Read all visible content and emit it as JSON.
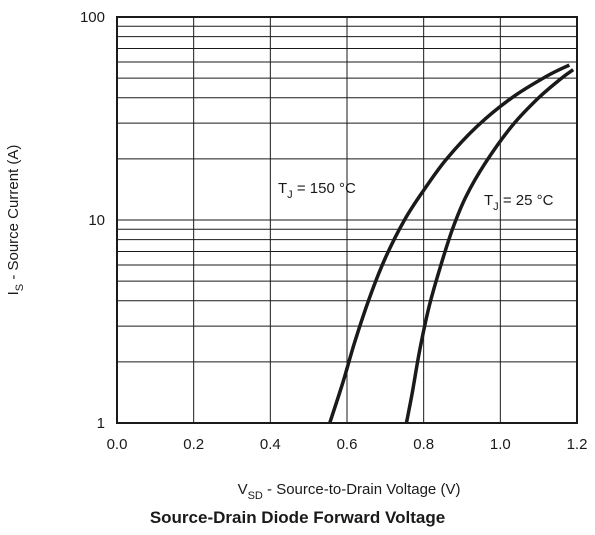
{
  "caption": "Source-Drain Diode Forward Voltage",
  "chart_data": {
    "type": "line",
    "title": "Source-Drain Diode Forward Voltage",
    "xlabel": {
      "main": "V",
      "sub": "SD",
      "rest": " - Source-to-Drain Voltage (V)"
    },
    "ylabel": {
      "main": "I",
      "sub": "S",
      "rest": " - Source Current (A)"
    },
    "xlim": [
      0.0,
      1.2
    ],
    "ylim": [
      1,
      100
    ],
    "yscale": "log",
    "grid": true,
    "x_ticks": [
      "0.0",
      "0.2",
      "0.4",
      "0.6",
      "0.8",
      "1.0",
      "1.2"
    ],
    "y_ticks": [
      "1",
      "10",
      "100"
    ],
    "series": [
      {
        "name": "T_J = 150 °C",
        "label": {
          "main": "T",
          "sub": "J",
          "rest": " = 150 °C"
        },
        "x": [
          0.555,
          0.59,
          0.62,
          0.66,
          0.7,
          0.75,
          0.8,
          0.86,
          0.94,
          1.03,
          1.12,
          1.18
        ],
        "y": [
          1.0,
          1.6,
          2.5,
          4.2,
          6.5,
          10.0,
          14.0,
          20.0,
          29.0,
          40.0,
          51.0,
          58.0
        ]
      },
      {
        "name": "T_J = 25 °C",
        "label": {
          "main": "T",
          "sub": "J",
          "rest": " = 25 °C"
        },
        "x": [
          0.755,
          0.77,
          0.79,
          0.815,
          0.845,
          0.875,
          0.91,
          0.96,
          1.03,
          1.1,
          1.16,
          1.19
        ],
        "y": [
          1.0,
          1.4,
          2.3,
          3.8,
          6.0,
          9.0,
          13.0,
          19.0,
          29.0,
          40.0,
          50.0,
          55.0
        ]
      }
    ]
  }
}
